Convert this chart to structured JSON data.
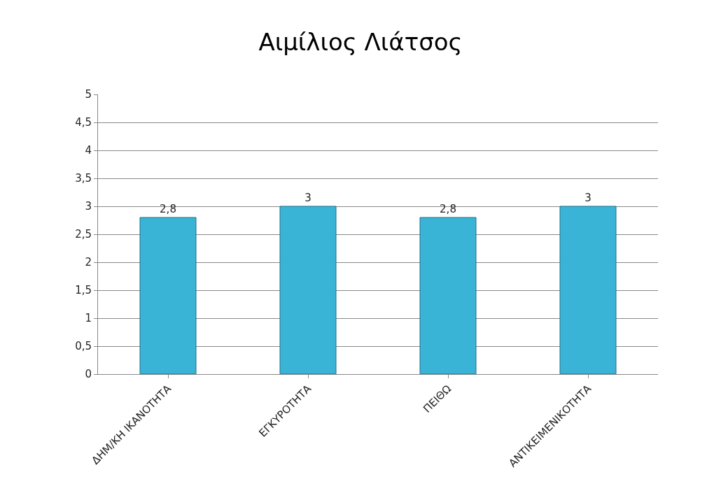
{
  "chart_data": {
    "type": "bar",
    "title": "Αιμίλιος Λιάτσος",
    "categories": [
      "ΔΗΜ/ΚΗ ΙΚΑΝΟΤΗΤΑ",
      "ΕΓΚΥΡΟΤΗΤΑ",
      "ΠΕΙΘΩ",
      "ΑΝΤΙΚΕΙΜΕΝΙΚΟΤΗΤΑ"
    ],
    "values": [
      2.8,
      3,
      2.8,
      3
    ],
    "value_labels": [
      "2,8",
      "3",
      "2,8",
      "3"
    ],
    "color": "#3ab4d6",
    "ylim": [
      0,
      5
    ],
    "yticks": [
      0,
      {
        "value": 0.5,
        "label": "0,5"
      },
      1,
      {
        "value": 1.5,
        "label": "1,5"
      },
      2,
      {
        "value": 2.5,
        "label": "2,5"
      },
      3,
      {
        "value": 3.5,
        "label": "3,5"
      },
      4,
      {
        "value": 4.5,
        "label": "4,5"
      },
      5
    ],
    "grid": "y",
    "legend": false
  }
}
